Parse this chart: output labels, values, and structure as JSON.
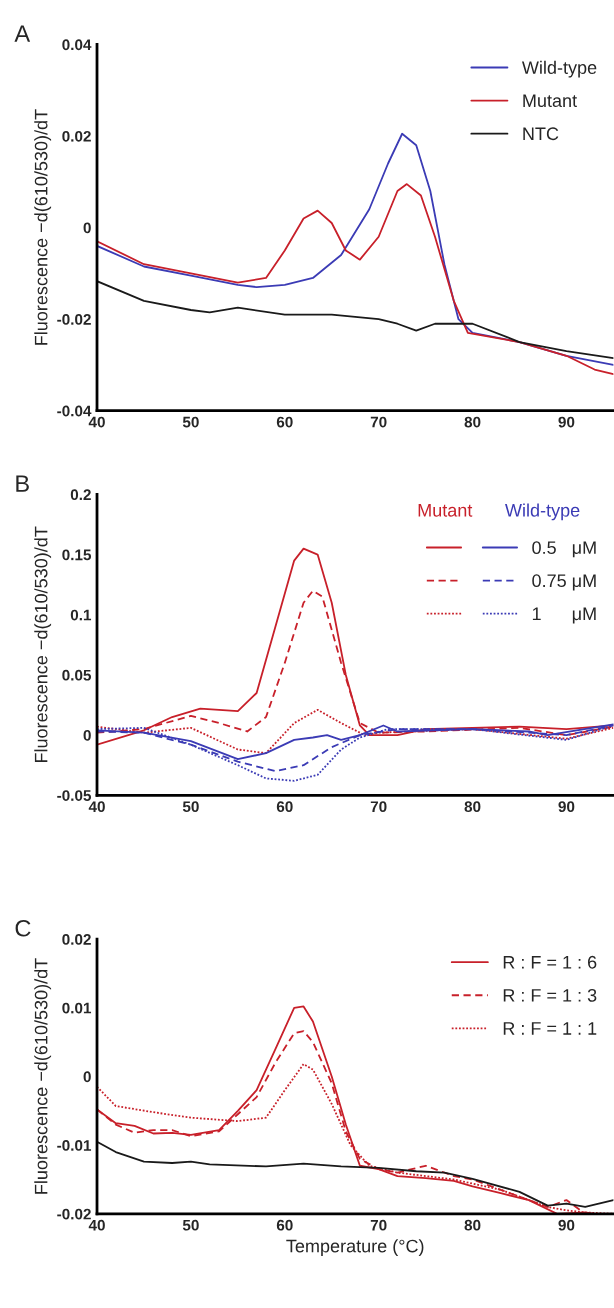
{
  "chart_data": [
    {
      "type": "line",
      "title": "A",
      "ylabel": "Fluorescence −d(610/530)/dT",
      "xlim": [
        40,
        95
      ],
      "xticks": [
        40,
        50,
        60,
        70,
        80,
        90
      ],
      "ylim": [
        -0.04,
        0.04
      ],
      "yticks": [
        -0.04,
        -0.02,
        0,
        0.02,
        0.04
      ],
      "grid": false,
      "legend": "top right",
      "line_style": "solid",
      "series": [
        {
          "name": "Wild-type",
          "color": "#3b3bb5",
          "x": [
            40,
            45,
            50,
            55,
            57,
            60,
            63,
            66,
            69,
            71,
            72.5,
            74,
            75.5,
            77,
            78.5,
            80,
            85,
            90,
            95
          ],
          "values": [
            -0.004,
            -0.0085,
            -0.0105,
            -0.0125,
            -0.013,
            -0.0125,
            -0.011,
            -0.006,
            0.004,
            0.014,
            0.0205,
            0.018,
            0.008,
            -0.008,
            -0.02,
            -0.023,
            -0.025,
            -0.028,
            -0.03
          ]
        },
        {
          "name": "Mutant",
          "color": "#c8202a",
          "x": [
            40,
            45,
            50,
            55,
            58,
            60,
            62,
            63.5,
            65,
            66.5,
            68,
            70,
            72,
            73,
            74.5,
            76,
            78,
            79.5,
            85,
            90,
            93,
            95
          ],
          "values": [
            -0.003,
            -0.008,
            -0.01,
            -0.012,
            -0.011,
            -0.005,
            0.002,
            0.0037,
            0.001,
            -0.005,
            -0.007,
            -0.002,
            0.008,
            0.0095,
            0.007,
            -0.002,
            -0.016,
            -0.023,
            -0.025,
            -0.028,
            -0.031,
            -0.032
          ]
        },
        {
          "name": "NTC",
          "color": "#1a1a1a",
          "x": [
            40,
            45,
            50,
            52,
            55,
            60,
            65,
            70,
            72,
            74,
            76,
            80,
            85,
            90,
            95
          ],
          "values": [
            -0.0117,
            -0.016,
            -0.018,
            -0.0185,
            -0.0175,
            -0.019,
            -0.019,
            -0.02,
            -0.021,
            -0.0225,
            -0.021,
            -0.021,
            -0.025,
            -0.027,
            -0.0285
          ]
        }
      ]
    },
    {
      "type": "line",
      "title": "B",
      "ylabel": "Fluorescence −d(610/530)/dT",
      "xlim": [
        40,
        95
      ],
      "xticks": [
        40,
        50,
        60,
        70,
        80,
        90
      ],
      "ylim": [
        -0.05,
        0.2
      ],
      "yticks": [
        -0.05,
        0,
        0.05,
        0.1,
        0.15,
        0.2
      ],
      "grid": false,
      "legend": "top right",
      "annotations": [
        "Mutant",
        "Wild-type"
      ],
      "series": [
        {
          "color": "#c8202a",
          "line_style": "solid",
          "x": [
            40,
            45,
            48,
            51,
            55,
            57,
            59,
            61,
            62,
            63.5,
            65,
            66.5,
            68,
            69,
            72,
            75,
            85,
            90,
            95
          ],
          "values": [
            -0.008,
            0.004,
            0.015,
            0.022,
            0.02,
            0.035,
            0.09,
            0.145,
            0.155,
            0.15,
            0.11,
            0.05,
            0.008,
            0,
            0,
            0.005,
            0.007,
            0.005,
            0.008
          ]
        },
        {
          "color": "#c8202a",
          "line_style": "dashed",
          "x": [
            40,
            45,
            50,
            53,
            56,
            58,
            60,
            62,
            63,
            64,
            66,
            68,
            70,
            75,
            85,
            90,
            95
          ],
          "values": [
            0.002,
            0.005,
            0.016,
            0.01,
            0.003,
            0.015,
            0.06,
            0.11,
            0.12,
            0.115,
            0.06,
            0.01,
            0.002,
            0.003,
            0.006,
            0.0,
            0.007
          ]
        },
        {
          "color": "#c8202a",
          "line_style": "dotted",
          "x": [
            40,
            45,
            50,
            55,
            58,
            61,
            63.5,
            66,
            68.5,
            70,
            80,
            90,
            95
          ],
          "values": [
            0.007,
            0.002,
            0.006,
            -0.012,
            -0.015,
            0.01,
            0.021,
            0.01,
            0,
            0.002,
            0.005,
            -0.003,
            0.006
          ]
        },
        {
          "name": "0.5   μM",
          "color": "#3b3bb5",
          "line_style": "solid",
          "x": [
            40,
            45,
            50,
            55,
            58,
            61,
            63,
            64.5,
            66,
            68,
            70.5,
            72,
            80,
            86,
            88,
            95
          ],
          "values": [
            0.004,
            0.002,
            -0.005,
            -0.02,
            -0.015,
            -0.004,
            -0.002,
            0.0,
            -0.004,
            0.0,
            0.008,
            0.003,
            0.005,
            0.003,
            0.0,
            0.009
          ]
        },
        {
          "name": "0.75 μM",
          "color": "#3b3bb5",
          "line_style": "dashed",
          "x": [
            40,
            45,
            50,
            55,
            59,
            62,
            65,
            68,
            72,
            80,
            90,
            95
          ],
          "values": [
            0.003,
            0.002,
            -0.008,
            -0.022,
            -0.03,
            -0.025,
            -0.01,
            0,
            0.005,
            0.005,
            0.0,
            0.008
          ]
        },
        {
          "name": "1      μM",
          "color": "#3b3bb5",
          "line_style": "dotted",
          "x": [
            40,
            45,
            50,
            55,
            58,
            61,
            63.5,
            66,
            68,
            71,
            80,
            90,
            95
          ],
          "values": [
            0.005,
            0.006,
            -0.008,
            -0.025,
            -0.036,
            -0.038,
            -0.033,
            -0.012,
            -0.002,
            0.005,
            0.005,
            -0.004,
            0.008
          ]
        }
      ]
    },
    {
      "type": "line",
      "title": "C",
      "xlabel": "Temperature (°C)",
      "ylabel": "Fluorescence −d(610/530)/dT",
      "xlim": [
        40,
        95
      ],
      "xticks": [
        40,
        50,
        60,
        70,
        80,
        90
      ],
      "ylim": [
        -0.02,
        0.02
      ],
      "yticks": [
        -0.02,
        -0.01,
        0,
        0.01,
        0.02
      ],
      "grid": false,
      "legend": "top right",
      "series": [
        {
          "name": "R : F = 1 : 6",
          "color": "#c8202a",
          "line_style": "solid",
          "x": [
            40,
            42,
            44,
            46,
            48,
            50,
            53,
            55,
            57,
            59,
            61,
            62,
            63,
            65,
            66.5,
            68,
            70,
            72,
            75,
            78,
            80,
            83,
            86,
            89,
            92,
            93,
            95
          ],
          "values": [
            -0.0048,
            -0.0068,
            -0.0072,
            -0.0083,
            -0.0082,
            -0.0085,
            -0.0078,
            -0.005,
            -0.002,
            0.004,
            0.01,
            0.0102,
            0.008,
            0.0,
            -0.007,
            -0.013,
            -0.0135,
            -0.0145,
            -0.0148,
            -0.0152,
            -0.016,
            -0.017,
            -0.018,
            -0.02,
            -0.0198,
            -0.02,
            -0.02
          ]
        },
        {
          "name": "R : F = 1 : 3",
          "color": "#c8202a",
          "line_style": "dashed",
          "x": [
            40,
            42,
            44,
            46,
            48,
            50,
            53,
            55,
            57,
            59,
            61,
            62,
            63,
            65,
            66.5,
            68,
            70,
            72,
            75,
            78,
            80,
            83,
            86,
            88,
            90,
            92,
            95
          ],
          "values": [
            -0.0048,
            -0.007,
            -0.0082,
            -0.0078,
            -0.0078,
            -0.0087,
            -0.008,
            -0.0055,
            -0.003,
            0.002,
            0.0063,
            0.0066,
            0.005,
            -0.001,
            -0.008,
            -0.012,
            -0.0135,
            -0.014,
            -0.013,
            -0.0145,
            -0.015,
            -0.0165,
            -0.018,
            -0.019,
            -0.018,
            -0.02,
            -0.02
          ]
        },
        {
          "name": "R : F = 1 : 1",
          "color": "#c8202a",
          "line_style": "dotted",
          "x": [
            40,
            42,
            46,
            50,
            55,
            58,
            60,
            62,
            63,
            65,
            67,
            69,
            72,
            78,
            83,
            88,
            90,
            92,
            95
          ],
          "values": [
            -0.0015,
            -0.0043,
            -0.0052,
            -0.006,
            -0.0065,
            -0.006,
            -0.002,
            0.0018,
            0.001,
            -0.004,
            -0.01,
            -0.013,
            -0.014,
            -0.015,
            -0.0165,
            -0.019,
            -0.0195,
            -0.0198,
            -0.02
          ]
        },
        {
          "color": "#1a1a1a",
          "line_style": "solid",
          "x": [
            40,
            42,
            45,
            48,
            50,
            52,
            58,
            62,
            66,
            70,
            74,
            77,
            80,
            85,
            88,
            90,
            92,
            95
          ],
          "values": [
            -0.0095,
            -0.011,
            -0.0124,
            -0.0126,
            -0.0124,
            -0.0128,
            -0.0131,
            -0.0127,
            -0.0131,
            -0.0133,
            -0.0138,
            -0.014,
            -0.0149,
            -0.0168,
            -0.0188,
            -0.0185,
            -0.019,
            -0.018
          ]
        }
      ]
    }
  ]
}
